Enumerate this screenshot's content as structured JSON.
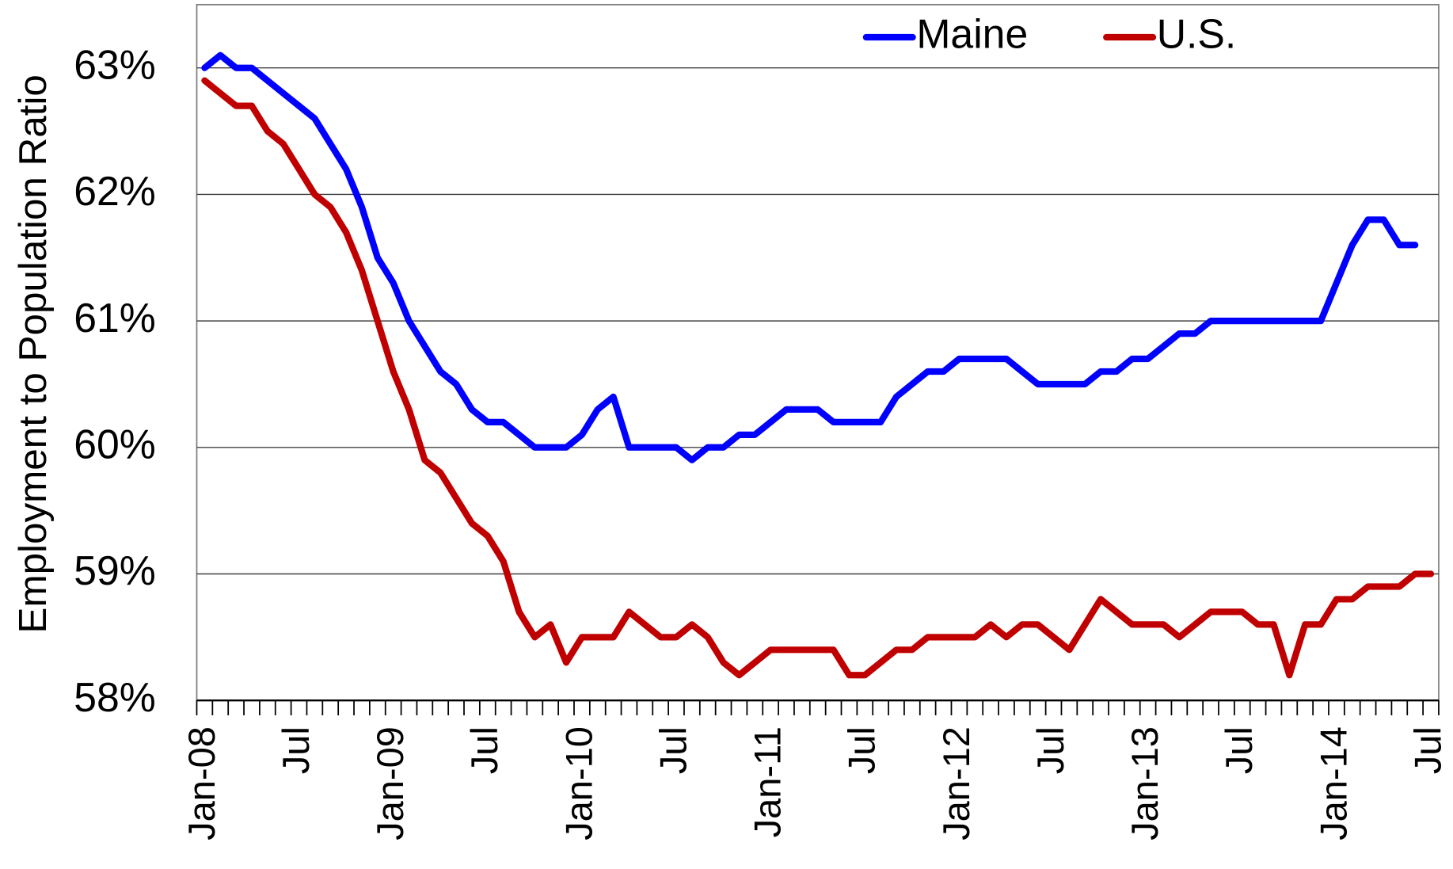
{
  "chart_data": {
    "type": "line",
    "y_label": "Employment to Population Ratio",
    "categories": [
      "Jan-08",
      null,
      null,
      null,
      null,
      null,
      "Jul",
      null,
      null,
      null,
      null,
      null,
      "Jan-09",
      null,
      null,
      null,
      null,
      null,
      "Jul",
      null,
      null,
      null,
      null,
      null,
      "Jan-10",
      null,
      null,
      null,
      null,
      null,
      "Jul",
      null,
      null,
      null,
      null,
      null,
      "Jan-11",
      null,
      null,
      null,
      null,
      null,
      "Jul",
      null,
      null,
      null,
      null,
      null,
      "Jan-12",
      null,
      null,
      null,
      null,
      null,
      "Jul",
      null,
      null,
      null,
      null,
      null,
      "Jan-13",
      null,
      null,
      null,
      null,
      null,
      "Jul",
      null,
      null,
      null,
      null,
      null,
      "Jan-14",
      null,
      null,
      null,
      null,
      null,
      "Jul"
    ],
    "series": [
      {
        "name": "Maine",
        "color": "#0000ff",
        "values": [
          63.0,
          63.1,
          63.0,
          63.0,
          62.9,
          62.8,
          62.7,
          62.6,
          62.4,
          62.2,
          61.9,
          61.5,
          61.3,
          61.0,
          60.8,
          60.6,
          60.5,
          60.3,
          60.2,
          60.2,
          60.1,
          60.0,
          60.0,
          60.0,
          60.1,
          60.3,
          60.4,
          60.0,
          60.0,
          60.0,
          60.0,
          59.9,
          60.0,
          60.0,
          60.1,
          60.1,
          60.2,
          60.3,
          60.3,
          60.3,
          60.2,
          60.2,
          60.2,
          60.2,
          60.4,
          60.5,
          60.6,
          60.6,
          60.7,
          60.7,
          60.7,
          60.7,
          60.6,
          60.5,
          60.5,
          60.5,
          60.5,
          60.6,
          60.6,
          60.7,
          60.7,
          60.8,
          60.9,
          60.9,
          61.0,
          61.0,
          61.0,
          61.0,
          61.0,
          61.0,
          61.0,
          61.0,
          61.3,
          61.6,
          61.8,
          61.8,
          61.6,
          61.6,
          null
        ]
      },
      {
        "name": "U.S.",
        "color": "#c00000",
        "values": [
          62.9,
          62.8,
          62.7,
          62.7,
          62.5,
          62.4,
          62.2,
          62.0,
          61.9,
          61.7,
          61.4,
          61.0,
          60.6,
          60.3,
          59.9,
          59.8,
          59.6,
          59.4,
          59.3,
          59.1,
          58.7,
          58.5,
          58.6,
          58.3,
          58.5,
          58.5,
          58.5,
          58.7,
          58.6,
          58.5,
          58.5,
          58.6,
          58.5,
          58.3,
          58.2,
          58.3,
          58.4,
          58.4,
          58.4,
          58.4,
          58.4,
          58.2,
          58.2,
          58.3,
          58.4,
          58.4,
          58.5,
          58.5,
          58.5,
          58.5,
          58.6,
          58.5,
          58.6,
          58.6,
          58.5,
          58.4,
          58.6,
          58.8,
          58.7,
          58.6,
          58.6,
          58.6,
          58.5,
          58.6,
          58.7,
          58.7,
          58.7,
          58.6,
          58.6,
          58.2,
          58.6,
          58.6,
          58.8,
          58.8,
          58.9,
          58.9,
          58.9,
          59.0,
          59.0
        ]
      }
    ],
    "ylim": [
      58,
      63.5
    ],
    "yticks": [
      {
        "value": 58,
        "label": "58%"
      },
      {
        "value": 59,
        "label": "59%"
      },
      {
        "value": 60,
        "label": "60%"
      },
      {
        "value": 61,
        "label": "61%"
      },
      {
        "value": 62,
        "label": "62%"
      },
      {
        "value": 63,
        "label": "63%"
      }
    ],
    "grid": true,
    "legend": "top"
  }
}
